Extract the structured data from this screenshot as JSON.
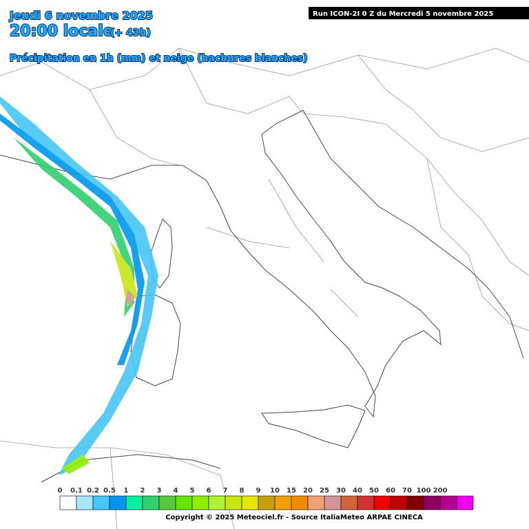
{
  "header": {
    "date": "Jeudi 6 novembre 2025",
    "time": "20:00 locale",
    "lead": "(+ 43h)",
    "product": "Précipitation en 1h (mm) et neige (hachures blanches)",
    "run": "Run ICON-2I 0 Z du Mercredi 5 novembre 2025"
  },
  "legend": {
    "items": [
      {
        "label": "0",
        "color": "#ffffff"
      },
      {
        "label": "0.1",
        "color": "#a8e6fa"
      },
      {
        "label": "0.2",
        "color": "#46c6f6"
      },
      {
        "label": "0.5",
        "color": "#0096f0"
      },
      {
        "label": "1",
        "color": "#00f0a0"
      },
      {
        "label": "2",
        "color": "#30d070"
      },
      {
        "label": "3",
        "color": "#5ac83c"
      },
      {
        "label": "4",
        "color": "#64e600"
      },
      {
        "label": "5",
        "color": "#8cf000"
      },
      {
        "label": "6",
        "color": "#b4f032"
      },
      {
        "label": "7",
        "color": "#c8e614"
      },
      {
        "label": "8",
        "color": "#e6e600"
      },
      {
        "label": "9",
        "color": "#c8a000"
      },
      {
        "label": "10",
        "color": "#f0a000"
      },
      {
        "label": "15",
        "color": "#f08c00"
      },
      {
        "label": "20",
        "color": "#f0a078"
      },
      {
        "label": "25",
        "color": "#d29696"
      },
      {
        "label": "30",
        "color": "#d2643c"
      },
      {
        "label": "40",
        "color": "#d23232"
      },
      {
        "label": "50",
        "color": "#f00000"
      },
      {
        "label": "60",
        "color": "#c00000"
      },
      {
        "label": "70",
        "color": "#800000"
      },
      {
        "label": "100",
        "color": "#8c0064"
      },
      {
        "label": "200",
        "color": "#b4008c"
      }
    ],
    "last_color": "#f000f0"
  },
  "footer": {
    "copyright": "Copyright © 2025 Meteociel.fr - Source ItaliaMeteo ARPAE CINECA"
  }
}
